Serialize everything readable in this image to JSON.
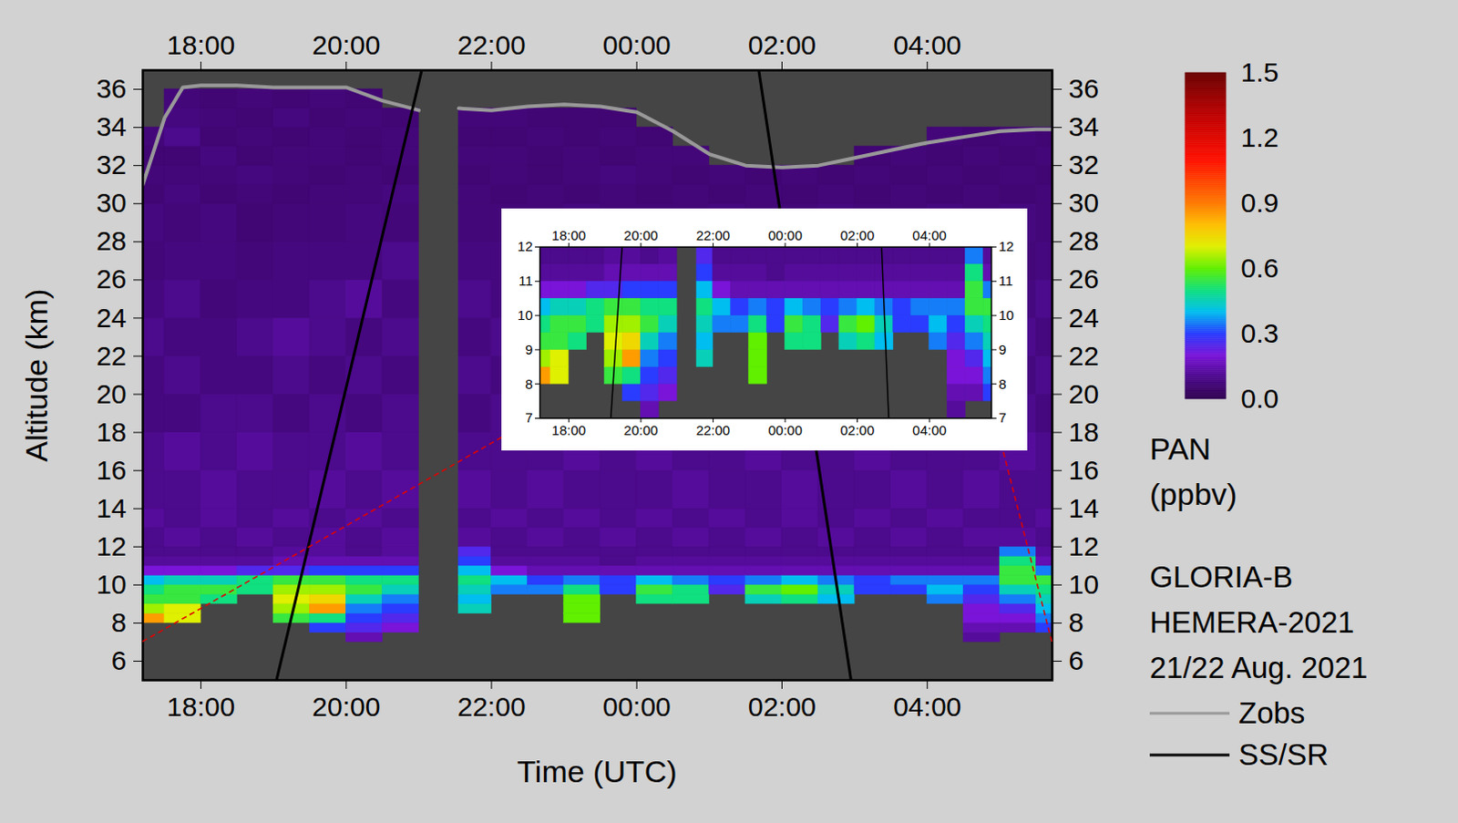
{
  "chart_data": {
    "type": "heatmap",
    "xlabel": "Time (UTC)",
    "ylabel": "Altitude (km)",
    "xlim": [
      17.2,
      29.72
    ],
    "ylim": [
      5,
      37
    ],
    "xticks": [
      {
        "value": 18,
        "label": "18:00"
      },
      {
        "value": 20,
        "label": "20:00"
      },
      {
        "value": 22,
        "label": "22:00"
      },
      {
        "value": 24,
        "label": "00:00"
      },
      {
        "value": 26,
        "label": "02:00"
      },
      {
        "value": 28,
        "label": "04:00"
      }
    ],
    "yticks": [
      6,
      8,
      10,
      12,
      14,
      16,
      18,
      20,
      22,
      24,
      26,
      28,
      30,
      32,
      34,
      36
    ],
    "x_edges": [
      17.2,
      17.5,
      18,
      18.5,
      19,
      19.5,
      20,
      20.5,
      21,
      21.55,
      22,
      22.5,
      23,
      23.5,
      24,
      24.5,
      25,
      25.5,
      26,
      26.5,
      27,
      27.5,
      28,
      28.5,
      29,
      29.5,
      29.72
    ],
    "y_edges": [
      7,
      7.5,
      8,
      8.5,
      9,
      9.5,
      10,
      10.5,
      11,
      11.5,
      12,
      13,
      14,
      16,
      18,
      20,
      22,
      24,
      26,
      28,
      30,
      31,
      32,
      33,
      34,
      35,
      36
    ],
    "values": [
      [
        null,
        null,
        0.85,
        0.65,
        0.55,
        0.5,
        0.4,
        0.2,
        0.12,
        0.1,
        0.1,
        0.12,
        0.1,
        0.1,
        0.08,
        0.08,
        0.1,
        0.08,
        0.07,
        0.08,
        0.06,
        0.07,
        0.06,
        0.07,
        null,
        null
      ],
      [
        null,
        null,
        0.7,
        0.7,
        0.55,
        0.55,
        0.45,
        0.2,
        0.12,
        0.1,
        0.12,
        0.1,
        0.1,
        0.12,
        0.08,
        0.1,
        0.08,
        0.1,
        0.08,
        0.07,
        0.08,
        0.07,
        0.06,
        0.1,
        0.08,
        0.07
      ],
      [
        null,
        null,
        null,
        null,
        0.5,
        0.55,
        0.45,
        0.2,
        0.12,
        0.1,
        0.1,
        0.12,
        0.12,
        0.1,
        0.1,
        0.08,
        0.08,
        0.07,
        0.08,
        0.08,
        0.06,
        0.07,
        0.08,
        0.06,
        0.07,
        0.06
      ],
      [
        null,
        null,
        null,
        null,
        null,
        0.5,
        0.5,
        0.25,
        0.12,
        0.1,
        0.12,
        0.1,
        0.1,
        0.12,
        0.1,
        0.08,
        0.1,
        0.08,
        0.07,
        0.06,
        0.07,
        0.08,
        0.06,
        0.07,
        0.06,
        0.07
      ],
      [
        null,
        null,
        0.55,
        0.65,
        0.7,
        0.65,
        0.55,
        0.25,
        0.15,
        0.12,
        0.1,
        0.12,
        0.1,
        0.1,
        0.08,
        0.1,
        0.12,
        0.08,
        0.08,
        0.07,
        0.06,
        0.07,
        0.07,
        0.06,
        0.08,
        0.06
      ],
      [
        null,
        0.3,
        0.5,
        0.85,
        0.75,
        0.65,
        0.55,
        0.3,
        0.15,
        0.12,
        0.12,
        0.1,
        0.12,
        0.1,
        0.1,
        0.08,
        0.1,
        0.1,
        0.08,
        0.07,
        0.07,
        0.06,
        0.07,
        0.07,
        0.06,
        0.07
      ],
      [
        0.15,
        0.25,
        0.3,
        0.35,
        0.45,
        0.55,
        0.5,
        0.3,
        0.15,
        0.1,
        0.1,
        0.12,
        0.1,
        0.12,
        0.08,
        0.1,
        0.08,
        0.12,
        0.08,
        0.08,
        0.07,
        0.07,
        0.06,
        0.06,
        0.07,
        0.06
      ],
      [
        null,
        0.2,
        0.25,
        0.3,
        0.35,
        0.45,
        0.5,
        0.3,
        0.15,
        0.12,
        0.12,
        0.1,
        0.12,
        0.1,
        0.1,
        0.08,
        0.1,
        0.08,
        0.1,
        0.07,
        0.08,
        0.06,
        0.07,
        0.07,
        0.06,
        null
      ],
      [
        null,
        null,
        null,
        null,
        null,
        null,
        null,
        null,
        null,
        null,
        null,
        null,
        null,
        null,
        null,
        null,
        null,
        null,
        null,
        null,
        null,
        null,
        null,
        null,
        null,
        null
      ],
      [
        null,
        null,
        null,
        0.45,
        0.4,
        0.45,
        0.5,
        0.4,
        0.3,
        0.25,
        0.12,
        0.1,
        0.12,
        0.1,
        0.08,
        0.1,
        0.08,
        0.1,
        0.08,
        0.07,
        0.07,
        0.06,
        0.07,
        0.06,
        0.07,
        null
      ],
      [
        null,
        null,
        null,
        null,
        null,
        0.35,
        0.4,
        0.2,
        0.12,
        0.1,
        0.1,
        0.12,
        0.1,
        0.1,
        0.1,
        0.08,
        0.1,
        0.08,
        0.08,
        0.07,
        0.06,
        0.07,
        0.07,
        0.06,
        0.07,
        null
      ],
      [
        null,
        null,
        null,
        null,
        null,
        0.35,
        0.3,
        0.15,
        0.12,
        0.1,
        0.12,
        0.1,
        0.12,
        0.1,
        0.08,
        0.1,
        0.08,
        0.08,
        0.1,
        0.07,
        0.07,
        0.06,
        0.06,
        0.07,
        0.06,
        null
      ],
      [
        null,
        null,
        0.6,
        0.6,
        0.6,
        0.5,
        0.35,
        0.15,
        0.12,
        0.1,
        0.1,
        0.12,
        0.1,
        0.12,
        0.1,
        0.08,
        0.1,
        0.08,
        0.07,
        0.08,
        0.06,
        0.07,
        0.07,
        0.06,
        0.06,
        null
      ],
      [
        null,
        null,
        null,
        null,
        null,
        0.3,
        0.3,
        0.15,
        0.1,
        0.1,
        0.12,
        0.1,
        0.1,
        0.1,
        0.08,
        0.1,
        0.1,
        0.08,
        0.08,
        0.07,
        0.07,
        0.08,
        0.06,
        0.07,
        0.06,
        null
      ],
      [
        null,
        null,
        null,
        null,
        0.5,
        0.55,
        0.4,
        0.15,
        0.12,
        0.1,
        0.1,
        0.12,
        0.1,
        0.12,
        0.1,
        0.08,
        0.08,
        0.1,
        0.07,
        0.07,
        0.06,
        0.07,
        0.07,
        0.06,
        null,
        null
      ],
      [
        null,
        null,
        null,
        null,
        0.5,
        0.5,
        0.35,
        0.15,
        0.12,
        0.1,
        0.12,
        0.1,
        0.12,
        0.1,
        0.08,
        0.1,
        0.08,
        0.08,
        0.08,
        0.07,
        0.07,
        0.06,
        0.07,
        null,
        null,
        null
      ],
      [
        null,
        null,
        null,
        null,
        null,
        0.25,
        0.3,
        0.15,
        0.12,
        0.1,
        0.1,
        0.12,
        0.1,
        0.1,
        0.1,
        0.08,
        0.1,
        0.08,
        0.07,
        0.08,
        0.06,
        0.07,
        null,
        null,
        null,
        null
      ],
      [
        null,
        null,
        null,
        null,
        0.45,
        0.55,
        0.35,
        0.15,
        0.12,
        0.1,
        0.12,
        0.1,
        0.1,
        0.12,
        0.08,
        0.1,
        0.08,
        0.1,
        0.08,
        0.07,
        0.07,
        0.06,
        null,
        null,
        null,
        null
      ],
      [
        null,
        null,
        null,
        null,
        0.5,
        0.6,
        0.4,
        0.15,
        0.12,
        0.1,
        0.1,
        0.12,
        0.12,
        0.1,
        0.1,
        0.08,
        0.1,
        0.08,
        0.08,
        0.07,
        0.06,
        0.07,
        null,
        null,
        null,
        null
      ],
      [
        null,
        null,
        null,
        null,
        0.4,
        0.45,
        0.35,
        0.15,
        0.12,
        0.1,
        0.12,
        0.1,
        0.1,
        0.1,
        0.08,
        0.1,
        0.08,
        0.08,
        0.07,
        0.08,
        0.07,
        0.06,
        null,
        null,
        null,
        null
      ],
      [
        null,
        null,
        null,
        null,
        null,
        0.3,
        0.3,
        0.15,
        0.12,
        0.1,
        0.1,
        0.12,
        0.1,
        0.12,
        0.1,
        0.08,
        0.08,
        0.1,
        0.08,
        0.07,
        0.06,
        0.07,
        0.06,
        null,
        null,
        null
      ],
      [
        null,
        null,
        null,
        null,
        null,
        0.3,
        0.35,
        0.15,
        0.12,
        0.1,
        0.12,
        0.1,
        0.12,
        0.1,
        0.08,
        0.1,
        0.1,
        0.08,
        0.08,
        0.07,
        0.07,
        0.06,
        0.07,
        null,
        null,
        null
      ],
      [
        null,
        null,
        null,
        null,
        0.35,
        0.4,
        0.35,
        0.15,
        0.12,
        0.1,
        0.1,
        0.12,
        0.1,
        0.1,
        0.1,
        0.08,
        0.1,
        0.08,
        0.07,
        0.08,
        0.06,
        0.07,
        0.06,
        0.07,
        null,
        null
      ],
      [
        0.12,
        0.15,
        0.2,
        0.2,
        0.25,
        0.3,
        0.35,
        0.15,
        0.12,
        0.1,
        0.12,
        0.1,
        0.12,
        0.1,
        0.08,
        0.1,
        0.08,
        0.1,
        0.08,
        0.07,
        0.07,
        0.06,
        0.07,
        0.06,
        null,
        null
      ],
      [
        null,
        0.15,
        0.2,
        0.25,
        0.35,
        0.45,
        0.55,
        0.55,
        0.5,
        0.35,
        0.12,
        0.1,
        0.1,
        0.12,
        0.1,
        0.08,
        0.1,
        0.08,
        0.07,
        0.08,
        0.06,
        0.07,
        0.06,
        0.07,
        null,
        null
      ],
      [
        null,
        0.3,
        0.35,
        0.4,
        0.45,
        0.5,
        0.55,
        0.35,
        0.15,
        0.12,
        0.1,
        0.12,
        0.1,
        0.1,
        0.08,
        0.1,
        0.08,
        0.1,
        0.08,
        0.07,
        0.07,
        0.06,
        0.07,
        0.06,
        null,
        null
      ]
    ],
    "colorbar": {
      "label": "PAN (ppbv)",
      "range": [
        0,
        1.5
      ],
      "ticks": [
        {
          "value": 0,
          "label": "0.0"
        },
        0.3,
        0.6,
        0.9,
        1.2,
        1.5
      ]
    },
    "series": [
      {
        "name": "Zobs",
        "type": "line",
        "color": "#999999",
        "x": [
          17.2,
          17.5,
          17.75,
          18,
          18.5,
          19,
          19.5,
          20,
          20.5,
          21,
          21.3,
          21.55,
          22,
          22.5,
          23,
          23.5,
          24,
          24.5,
          25,
          25.5,
          26,
          26.5,
          27,
          27.5,
          28,
          28.5,
          29,
          29.5,
          29.72
        ],
        "values": [
          31,
          34.5,
          36.1,
          36.2,
          36.2,
          36.1,
          36.1,
          36.1,
          35.4,
          34.9,
          null,
          35,
          34.9,
          35.1,
          35.2,
          35.1,
          34.8,
          33.8,
          32.6,
          32,
          31.9,
          32,
          32.4,
          32.8,
          33.2,
          33.5,
          33.8,
          33.9,
          33.9
        ]
      },
      {
        "name": "SS/SR",
        "type": "line",
        "color": "#000000",
        "x": [
          19.04,
          21.04,
          null,
          25.68,
          26.95
        ],
        "values": [
          5,
          37,
          null,
          37,
          5
        ]
      }
    ],
    "legend": "right",
    "annotations": [
      "GLORIA-B",
      "HEMERA-2021",
      "21/22 Aug. 2021"
    ],
    "inset": {
      "xlim": [
        17.2,
        29.72
      ],
      "ylim": [
        7,
        12
      ],
      "xticks": [
        {
          "value": 18,
          "label": "18:00"
        },
        {
          "value": 20,
          "label": "20:00"
        },
        {
          "value": 22,
          "label": "22:00"
        },
        {
          "value": 24,
          "label": "00:00"
        },
        {
          "value": 26,
          "label": "02:00"
        },
        {
          "value": 28,
          "label": "04:00"
        }
      ],
      "yticks": [
        7,
        8,
        9,
        10,
        11,
        12
      ]
    }
  }
}
